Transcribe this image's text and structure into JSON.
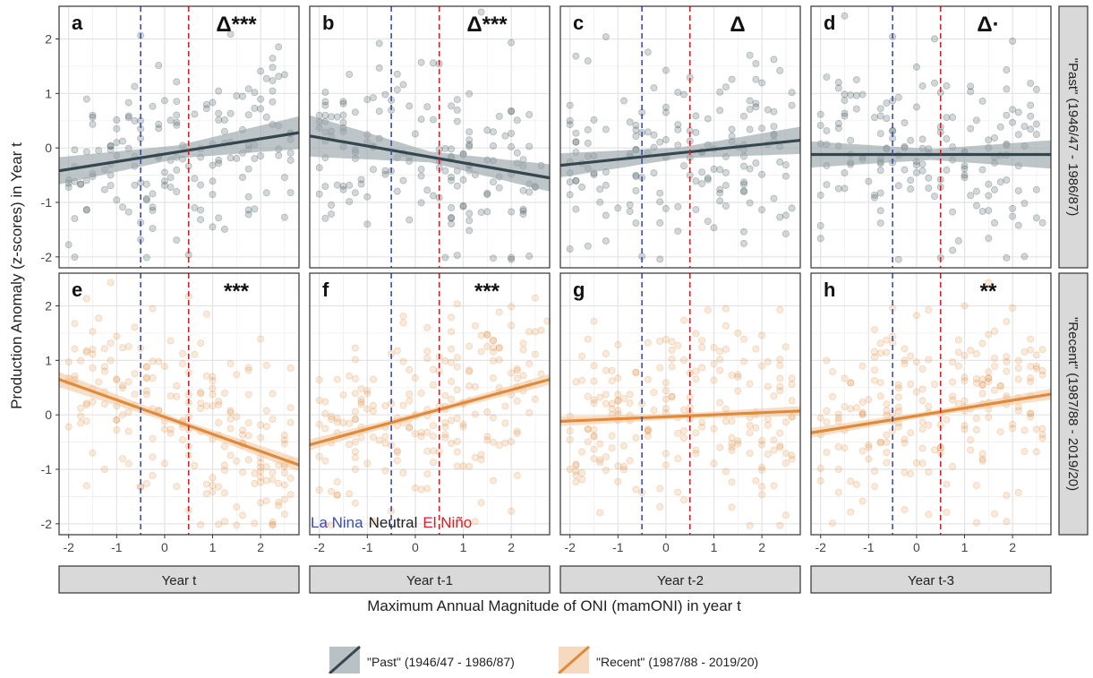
{
  "chart_data": {
    "type": "scatter",
    "xlabel": "Maximum Annual Magnitude of ONI (mamONI) in year t",
    "ylabel": "Production Anomaly (z-scores) in Year t",
    "xlim": [
      -2.2,
      2.8
    ],
    "ylim": [
      -2.2,
      2.6
    ],
    "x_ticks": [
      -2,
      -1,
      0,
      1,
      2
    ],
    "y_ticks": [
      -2,
      -1,
      0,
      1,
      2
    ],
    "x_tick_labels": [
      "-2",
      "-1",
      "0",
      "1",
      "2"
    ],
    "y_tick_labels": [
      "-2",
      "-1",
      "0",
      "1",
      "2"
    ],
    "vlines": [
      {
        "x": -0.5,
        "color": "#3b4fa8",
        "style": "dashed"
      },
      {
        "x": 0.5,
        "color": "#e31a1c",
        "style": "dashed"
      }
    ],
    "enso_labels": [
      {
        "text": "La Nina",
        "color": "#3b4fa8"
      },
      {
        "text": "Neutral",
        "color": "#222222"
      },
      {
        "text": "El Niño",
        "color": "#e31a1c"
      }
    ],
    "columns": [
      "Year t",
      "Year t-1",
      "Year t-2",
      "Year t-3"
    ],
    "rows": [
      "\"Past\" (1946/47 - 1986/87)",
      "\"Recent\" (1987/88 - 2019/20)"
    ],
    "series": [
      {
        "name": "\"Past\" (1946/47 - 1986/87)",
        "color": "#34474f",
        "band": "#9aa6aa"
      },
      {
        "name": "\"Recent\" (1987/88 - 2019/20)",
        "color": "#e08a3c",
        "band": "#f2c9a2"
      }
    ],
    "panels": [
      {
        "label": "a",
        "annotation": "Δ***",
        "row": 0,
        "col": 0,
        "fit": [
          [
            -2.2,
            -0.42
          ],
          [
            2.8,
            0.28
          ]
        ],
        "band_halfwidth": [
          0.25,
          0.12,
          0.3
        ]
      },
      {
        "label": "b",
        "annotation": "Δ***",
        "row": 0,
        "col": 1,
        "fit": [
          [
            -2.2,
            0.22
          ],
          [
            2.8,
            -0.55
          ]
        ],
        "band_halfwidth": [
          0.38,
          0.1,
          0.25
        ]
      },
      {
        "label": "c",
        "annotation": "Δ",
        "row": 0,
        "col": 2,
        "fit": [
          [
            -2.2,
            -0.32
          ],
          [
            2.8,
            0.14
          ]
        ],
        "band_halfwidth": [
          0.22,
          0.1,
          0.25
        ]
      },
      {
        "label": "d",
        "annotation": "Δ·",
        "row": 0,
        "col": 3,
        "fit": [
          [
            -2.2,
            -0.12
          ],
          [
            2.8,
            -0.12
          ]
        ],
        "band_halfwidth": [
          0.24,
          0.1,
          0.26
        ]
      },
      {
        "label": "e",
        "annotation": "***",
        "row": 1,
        "col": 0,
        "fit": [
          [
            -2.2,
            0.65
          ],
          [
            2.8,
            -0.92
          ]
        ],
        "band_halfwidth": [
          0.14,
          0.06,
          0.12
        ]
      },
      {
        "label": "f",
        "annotation": "***",
        "row": 1,
        "col": 1,
        "fit": [
          [
            -2.2,
            -0.55
          ],
          [
            2.8,
            0.65
          ]
        ],
        "band_halfwidth": [
          0.1,
          0.05,
          0.1
        ]
      },
      {
        "label": "g",
        "annotation": "",
        "row": 1,
        "col": 2,
        "fit": [
          [
            -2.2,
            -0.12
          ],
          [
            2.8,
            0.07
          ]
        ],
        "band_halfwidth": [
          0.09,
          0.05,
          0.09
        ]
      },
      {
        "label": "h",
        "annotation": "**",
        "row": 1,
        "col": 3,
        "fit": [
          [
            -2.2,
            -0.33
          ],
          [
            2.8,
            0.38
          ]
        ],
        "band_halfwidth": [
          0.09,
          0.05,
          0.1
        ]
      }
    ],
    "legend": {
      "position": "bottom"
    }
  }
}
